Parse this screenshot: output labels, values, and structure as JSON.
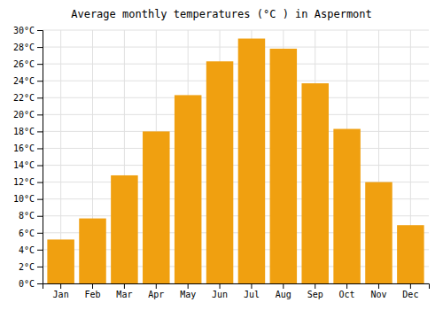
{
  "chart_data": {
    "type": "bar",
    "title": "Average monthly temperatures (°C ) in Aspermont",
    "categories": [
      "Jan",
      "Feb",
      "Mar",
      "Apr",
      "May",
      "Jun",
      "Jul",
      "Aug",
      "Sep",
      "Oct",
      "Nov",
      "Dec"
    ],
    "values": [
      5.2,
      7.7,
      12.8,
      18.0,
      22.3,
      26.3,
      29.0,
      27.8,
      23.7,
      18.3,
      12.0,
      6.9
    ],
    "color": "#F0A010",
    "ylim": [
      0,
      30
    ],
    "yticks": [
      {
        "value": 0,
        "label": "0°C"
      },
      {
        "value": 2,
        "label": "2°C"
      },
      {
        "value": 4,
        "label": "4°C"
      },
      {
        "value": 6,
        "label": "6°C"
      },
      {
        "value": 8,
        "label": "8°C"
      },
      {
        "value": 10,
        "label": "10°C"
      },
      {
        "value": 12,
        "label": "12°C"
      },
      {
        "value": 14,
        "label": "14°C"
      },
      {
        "value": 16,
        "label": "16°C"
      },
      {
        "value": 18,
        "label": "18°C"
      },
      {
        "value": 20,
        "label": "20°C"
      },
      {
        "value": 22,
        "label": "22°C"
      },
      {
        "value": 24,
        "label": "24°C"
      },
      {
        "value": 26,
        "label": "26°C"
      },
      {
        "value": 28,
        "label": "28°C"
      },
      {
        "value": 30,
        "label": "30°C"
      }
    ],
    "grid": true
  }
}
